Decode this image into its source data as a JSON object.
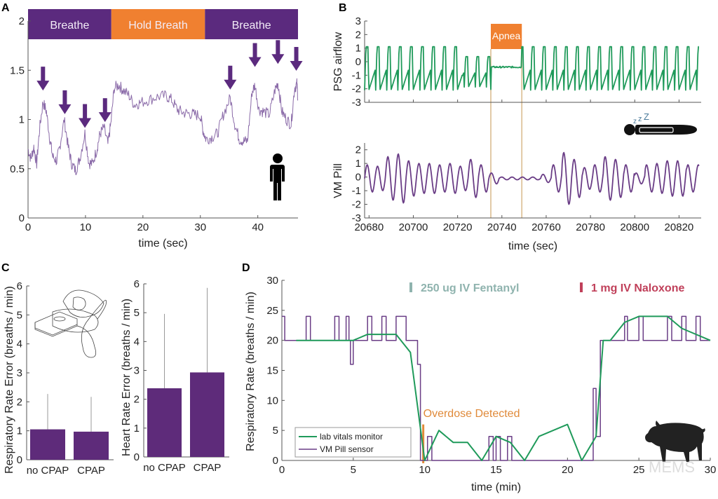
{
  "colors": {
    "purple": "#5b2a7e",
    "orange": "#f08030",
    "green": "#1f9a5a",
    "pillLine": "#6a3d86",
    "traceA": "#8a6aa8",
    "fentanyl": "#8fb3ae",
    "naloxone": "#c0405a",
    "apneaLine": "#d9b98a",
    "overdose": "#e08a3a"
  },
  "chart_data": [
    {
      "panel": "A",
      "type": "line",
      "xlabel": "time (sec)",
      "ylabel": "",
      "xlim": [
        0,
        47
      ],
      "ylim": [
        0,
        2
      ],
      "xticks": [
        0,
        10,
        20,
        30,
        40
      ],
      "yticks": [
        0,
        0.5,
        1,
        1.5,
        2
      ],
      "ytick_labels": [
        "0",
        "0.5",
        "1",
        "1.5",
        "2"
      ],
      "phases": [
        {
          "label": "Breathe",
          "start": 0,
          "end": 14.5,
          "color": "purple"
        },
        {
          "label": "Hold Breath",
          "start": 14.5,
          "end": 30.8,
          "color": "orange"
        },
        {
          "label": "Breathe",
          "start": 30.8,
          "end": 47,
          "color": "purple"
        }
      ],
      "arrows_at_sec": [
        2.6,
        6.4,
        9.9,
        13.4,
        35.2,
        39.5,
        43.5,
        46.7
      ],
      "arrow_tip_values": [
        1.28,
        1.04,
        0.9,
        0.96,
        1.29,
        1.52,
        1.55,
        1.48
      ],
      "series": [
        {
          "name": "signal",
          "x": [
            0,
            0.5,
            1,
            1.5,
            2,
            2.6,
            3.2,
            3.8,
            4.3,
            5,
            5.5,
            6.3,
            7,
            7.6,
            8.3,
            9,
            9.9,
            10.6,
            11.2,
            12,
            12.5,
            13.2,
            13.9,
            14.4,
            15,
            15.8,
            16.5,
            17.5,
            18.5,
            19.5,
            21,
            22.5,
            24,
            25,
            26,
            27,
            28,
            29,
            30,
            30.5,
            31,
            32,
            33,
            34,
            35.2,
            36,
            36.8,
            37.5,
            38.2,
            39,
            39.5,
            40.2,
            41,
            42,
            43,
            43.5,
            44.2,
            45,
            45.8,
            46.4,
            46.8,
            47
          ],
          "y": [
            0.7,
            0.6,
            0.72,
            0.55,
            0.9,
            1.18,
            1.08,
            0.8,
            0.62,
            0.58,
            0.72,
            1.0,
            0.72,
            0.55,
            0.48,
            0.6,
            0.86,
            0.56,
            0.55,
            0.7,
            0.85,
            0.92,
            0.75,
            0.95,
            1.32,
            1.35,
            1.3,
            1.25,
            1.15,
            1.17,
            1.2,
            1.23,
            1.24,
            1.2,
            1.1,
            1.07,
            1.06,
            1.05,
            1.04,
            0.88,
            0.8,
            0.82,
            0.86,
            1.05,
            1.22,
            0.95,
            0.8,
            0.78,
            0.78,
            1.28,
            1.35,
            1.1,
            1.08,
            1.05,
            1.3,
            1.38,
            1.08,
            1.0,
            0.95,
            1.32,
            1.36,
            1.2
          ]
        }
      ]
    },
    {
      "panel": "B-top",
      "type": "line",
      "xlabel": "",
      "ylabel": "PSG airflow",
      "xlim": [
        20678,
        20830
      ],
      "ylim": [
        -3,
        3
      ],
      "yticks": [
        -3,
        -2,
        -1,
        0,
        1,
        2,
        3
      ],
      "annotation": {
        "label": "Apnea",
        "start": 20735,
        "end": 20749
      },
      "series": [
        {
          "name": "PSG airflow",
          "breath_period_sec": 5.0,
          "amplitude_max": 1.1,
          "amplitude_min": -2.1,
          "apnea_level": -0.4
        }
      ]
    },
    {
      "panel": "B-bottom",
      "type": "line",
      "xlabel": "time (sec)",
      "ylabel": "VM Pill",
      "xlim": [
        20678,
        20830
      ],
      "ylim": [
        -3,
        2.5
      ],
      "xticks": [
        20680,
        20700,
        20720,
        20740,
        20760,
        20780,
        20800,
        20820
      ],
      "yticks": [
        -3,
        -2,
        -1,
        0,
        1,
        2
      ],
      "series": [
        {
          "name": "VM Pill",
          "period_sec": 5.0,
          "peak_amplitudes": [
            1.0,
            0.9,
            1.6,
            1.8,
            1.3,
            1.1,
            1.1,
            1.0,
            1.1,
            0.9,
            1.4,
            1.0,
            0.4,
            0.1,
            0.1,
            0.1,
            0.1,
            0.3,
            1.0,
            1.9,
            1.4,
            0.8,
            1.0,
            1.6,
            1.4,
            1.0,
            0.4,
            1.0,
            1.1,
            1.3,
            1.3,
            1.0
          ]
        }
      ]
    },
    {
      "panel": "C-left",
      "type": "bar",
      "categories": [
        "no CPAP",
        "CPAP"
      ],
      "values": [
        1.05,
        0.97
      ],
      "errors": [
        1.22,
        1.2
      ],
      "ylabel": "Respiratory Rate Error (breaths / min)",
      "ylim": [
        0,
        6
      ],
      "yticks": [
        0,
        1,
        2,
        3,
        4,
        5,
        6
      ]
    },
    {
      "panel": "C-right",
      "type": "bar",
      "categories": [
        "no CPAP",
        "CPAP"
      ],
      "values": [
        2.38,
        2.93
      ],
      "errors": [
        2.58,
        2.93
      ],
      "ylabel": "Heart Rate Error (breaths / min)",
      "ylim": [
        0,
        6
      ],
      "yticks": [
        0,
        1,
        2,
        3,
        4,
        5,
        6
      ]
    },
    {
      "panel": "D",
      "type": "line",
      "xlabel": "time (min)",
      "ylabel": "Respiratory Rate (breaths / min)",
      "xlim": [
        0,
        30
      ],
      "ylim": [
        0,
        30
      ],
      "xticks": [
        0,
        5,
        10,
        15,
        20,
        25,
        30
      ],
      "yticks": [
        0,
        5,
        10,
        15,
        20,
        25,
        30
      ],
      "annotations": [
        {
          "label": "250 ug IV Fentanyl",
          "color": "fentanyl"
        },
        {
          "label": "1 mg IV Naloxone",
          "color": "naloxone"
        },
        {
          "label": "Overdose Detected",
          "x": 9.9,
          "color": "overdose"
        }
      ],
      "legend": {
        "position": "bottom-left",
        "entries": [
          "lab vitals monitor",
          "VM Pill sensor"
        ]
      },
      "series": [
        {
          "name": "lab vitals monitor",
          "x": [
            1,
            5,
            6,
            8,
            9,
            10,
            11,
            12,
            13,
            14,
            15,
            16,
            17,
            18,
            20,
            21,
            22,
            22.5,
            23,
            24,
            25,
            27,
            28,
            30
          ],
          "y": [
            20,
            20,
            21,
            21,
            18,
            0,
            5,
            3,
            3,
            0,
            4,
            3,
            0,
            4,
            6,
            0,
            4,
            20,
            20,
            23,
            24,
            24,
            22,
            20
          ]
        },
        {
          "name": "VM Pill sensor",
          "x": [
            0,
            0.2,
            1.7,
            2,
            3.7,
            4,
            4.5,
            4.7,
            4.8,
            5,
            6,
            6.3,
            7,
            7.3,
            8,
            8.7,
            9.5,
            9.7,
            9.8,
            10.2,
            10.5,
            14.5,
            14.8,
            15,
            15.3,
            15.8,
            16.1,
            21.8,
            22,
            22.3,
            22.5,
            24,
            24.2,
            25,
            25.3,
            27,
            27.3,
            28,
            28.3,
            29,
            29.3,
            30
          ],
          "y": [
            24,
            20,
            24,
            20,
            24,
            20,
            24,
            20,
            16,
            20,
            24,
            20,
            24,
            20,
            24,
            20,
            16,
            0,
            0,
            4,
            0,
            4,
            0,
            4,
            0,
            4,
            0,
            12,
            4,
            20,
            20,
            24,
            20,
            24,
            20,
            24,
            20,
            24,
            20,
            24,
            20,
            20
          ]
        }
      ]
    }
  ],
  "panels": {
    "A": "A",
    "B": "B",
    "C": "C",
    "D": "D"
  },
  "watermark": "MEMS"
}
